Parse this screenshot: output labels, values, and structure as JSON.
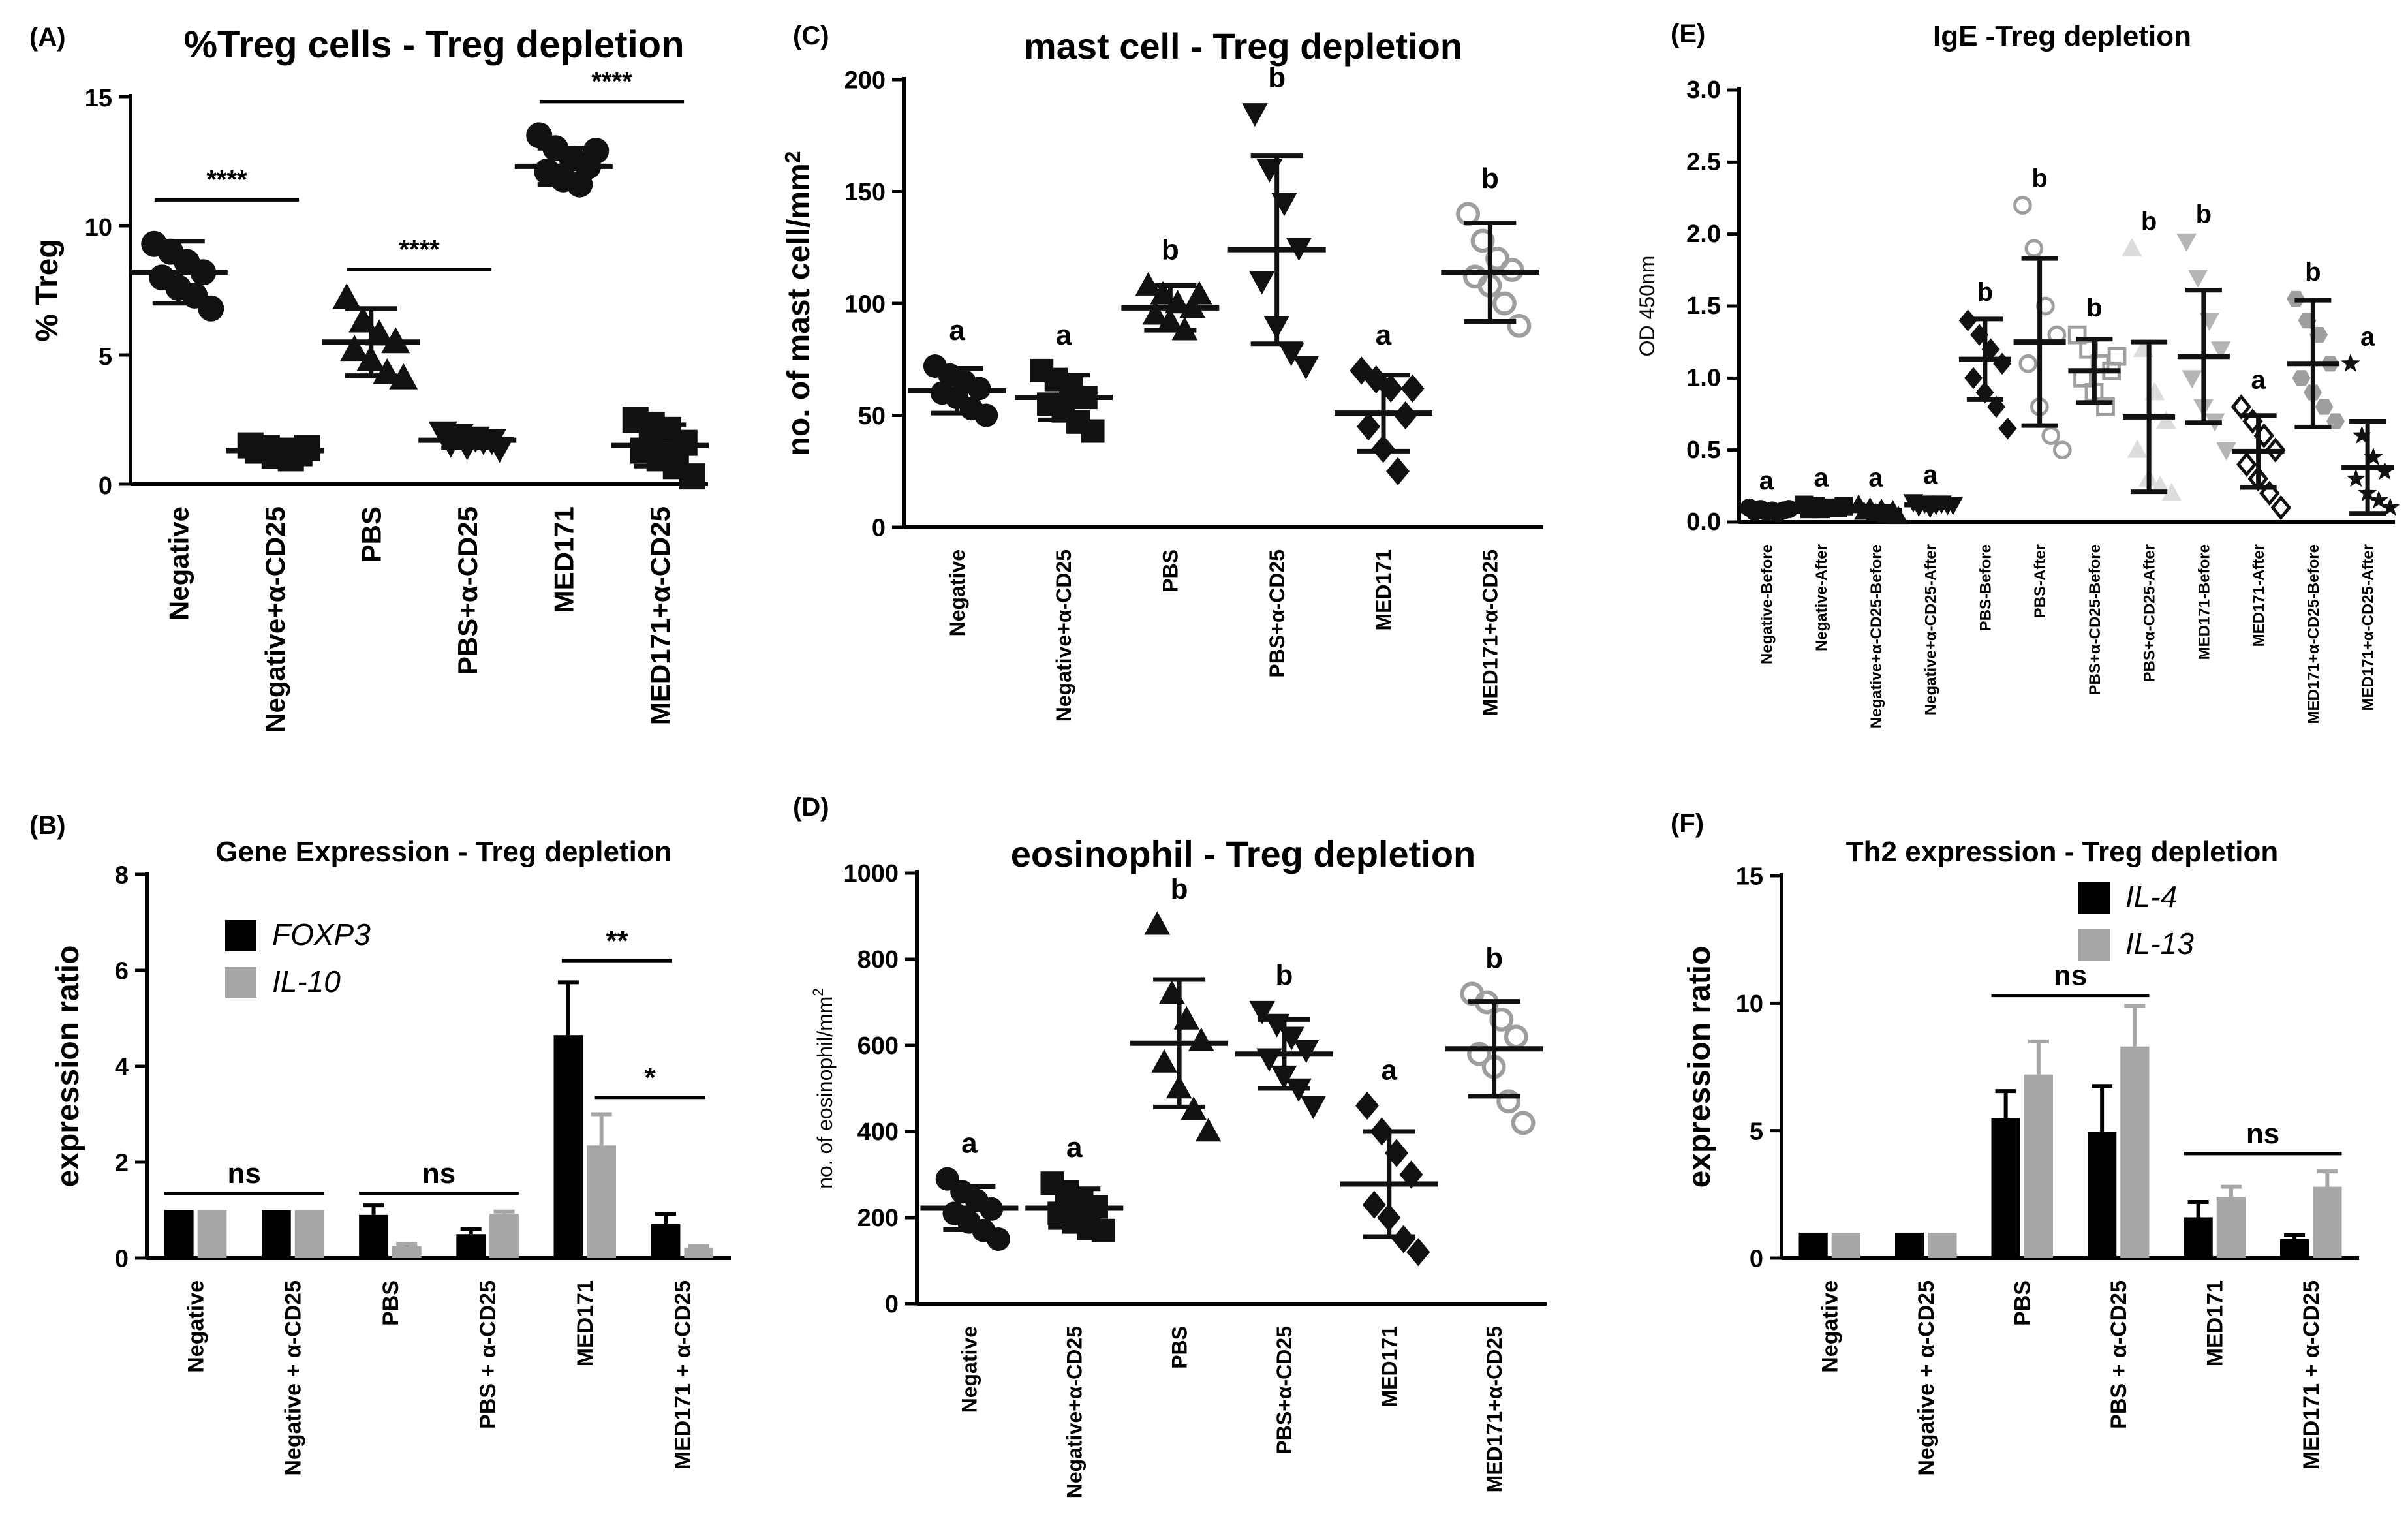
{
  "figure": {
    "description_free": true
  },
  "chart_data": [
    {
      "id": "A",
      "panel_label": "(A)",
      "type": "scatter",
      "title": "%Treg cells - Treg depletion",
      "ylabel": "% Treg",
      "xlabel": "",
      "ylim": [
        0,
        15
      ],
      "yticks": [
        0,
        5,
        10,
        15
      ],
      "categories": [
        "Negative",
        "Negative+α-CD25",
        "PBS",
        "PBS+α-CD25",
        "MED171",
        "MED171+α-CD25"
      ],
      "groups": [
        {
          "marker": "circle",
          "color": "#111111",
          "mean": 8.2,
          "sd": 1.2,
          "points": [
            9.3,
            9.0,
            8.6,
            8.2,
            8.0,
            7.6,
            7.3,
            6.8
          ]
        },
        {
          "marker": "square",
          "color": "#111111",
          "mean": 1.3,
          "sd": 0.3,
          "points": [
            1.5,
            1.4,
            1.3,
            1.2,
            1.3,
            1.1,
            1.0,
            1.4
          ]
        },
        {
          "marker": "triangle-up",
          "color": "#111111",
          "mean": 5.5,
          "sd": 1.3,
          "points": [
            7.2,
            6.3,
            5.8,
            5.5,
            5.2,
            4.8,
            4.3,
            4.1
          ]
        },
        {
          "marker": "triangle-down",
          "color": "#111111",
          "mean": 1.7,
          "sd": 0.3,
          "points": [
            2.0,
            1.9,
            1.8,
            1.7,
            1.6,
            1.5,
            1.7,
            1.4
          ]
        },
        {
          "marker": "circle",
          "color": "#111111",
          "mean": 12.3,
          "sd": 0.7,
          "points": [
            13.5,
            13.0,
            12.6,
            12.3,
            12.1,
            11.8,
            11.6,
            12.9
          ]
        },
        {
          "marker": "square",
          "color": "#111111",
          "mean": 1.5,
          "sd": 0.8,
          "points": [
            2.5,
            2.3,
            2.1,
            1.6,
            1.3,
            1.0,
            0.7,
            0.3
          ]
        }
      ],
      "sig_bars": [
        {
          "from": 0,
          "to": 1,
          "y": 11.0,
          "label": "****"
        },
        {
          "from": 2,
          "to": 3,
          "y": 8.3,
          "label": "****"
        },
        {
          "from": 4,
          "to": 5,
          "y": 14.8,
          "label": "****"
        }
      ],
      "letters": []
    },
    {
      "id": "B",
      "panel_label": "(B)",
      "type": "bar",
      "title": "Gene Expression - Treg depletion",
      "ylabel": "expression ratio",
      "xlabel": "",
      "ylim": [
        0,
        8
      ],
      "yticks": [
        0,
        2,
        4,
        6,
        8
      ],
      "categories": [
        "Negative",
        "Negative + α-CD25",
        "PBS",
        "PBS + α-CD25",
        "MED171",
        "MED171 + α-CD25"
      ],
      "series": [
        {
          "name": "FOXP3",
          "color": "#000000",
          "values": [
            1.0,
            1.0,
            0.9,
            0.5,
            4.65,
            0.72
          ],
          "errors": [
            0.0,
            0.0,
            0.2,
            0.1,
            1.1,
            0.2
          ]
        },
        {
          "name": "IL-10",
          "color": "#a6a6a6",
          "values": [
            1.0,
            1.0,
            0.25,
            0.92,
            2.35,
            0.22
          ],
          "errors": [
            0.0,
            0.0,
            0.05,
            0.05,
            0.65,
            0.03
          ]
        }
      ],
      "legend": "top-left",
      "sig_bars": [
        {
          "from": 0,
          "to": 1,
          "y": 1.35,
          "label": "ns",
          "span": "group"
        },
        {
          "from": 2,
          "to": 3,
          "y": 1.35,
          "label": "ns",
          "span": "group"
        },
        {
          "from": 4,
          "to": 5,
          "y": 6.2,
          "label": "**",
          "span": "bar-foxp3"
        },
        {
          "from": 4,
          "to": 5,
          "y": 3.35,
          "label": "*",
          "span": "bar-il10"
        }
      ]
    },
    {
      "id": "C",
      "panel_label": "(C)",
      "type": "scatter",
      "title": "mast cell - Treg depletion",
      "ylabel": "no. of mast cell/mm",
      "ylabel_sup": "2",
      "xlabel": "",
      "ylim": [
        0,
        200
      ],
      "yticks": [
        0,
        50,
        100,
        150,
        200
      ],
      "categories": [
        "Negative",
        "Negative+α-CD25",
        "PBS",
        "PBS+α-CD25",
        "MED171",
        "MED171+α-CD25"
      ],
      "groups": [
        {
          "marker": "circle",
          "color": "#111111",
          "mean": 61,
          "sd": 10,
          "points": [
            72,
            68,
            65,
            62,
            60,
            58,
            53,
            50
          ]
        },
        {
          "marker": "square",
          "color": "#111111",
          "mean": 58,
          "sd": 10,
          "points": [
            70,
            66,
            62,
            58,
            55,
            52,
            47,
            43
          ]
        },
        {
          "marker": "triangle-up",
          "color": "#111111",
          "mean": 98,
          "sd": 10,
          "points": [
            108,
            104,
            100,
            98,
            95,
            92,
            88,
            104
          ]
        },
        {
          "marker": "triangle-down",
          "color": "#111111",
          "mean": 124,
          "sd": 42,
          "points": [
            185,
            160,
            145,
            125,
            110,
            90,
            78,
            72
          ]
        },
        {
          "marker": "diamond",
          "color": "#111111",
          "mean": 51,
          "sd": 17,
          "points": [
            70,
            66,
            62,
            50,
            45,
            35,
            25,
            62
          ]
        },
        {
          "marker": "circle-open",
          "color": "#9e9e9e",
          "mean": 114,
          "sd": 22,
          "points": [
            140,
            128,
            120,
            115,
            112,
            108,
            100,
            90
          ]
        }
      ],
      "letters": [
        "a",
        "a",
        "b",
        "b",
        "a",
        "b"
      ],
      "sig_bars": []
    },
    {
      "id": "D",
      "panel_label": "(D)",
      "type": "scatter",
      "title": "eosinophil - Treg depletion",
      "ylabel": "no. of eosinophil/mm",
      "ylabel_sup": "2",
      "xlabel": "",
      "ylim": [
        0,
        1000
      ],
      "yticks": [
        0,
        200,
        400,
        600,
        800,
        1000
      ],
      "categories": [
        "Negative",
        "Negative+α-CD25",
        "PBS",
        "PBS+α-CD25",
        "MED171",
        "MED171+α-CD25"
      ],
      "groups": [
        {
          "marker": "circle",
          "color": "#111111",
          "mean": 222,
          "sd": 50,
          "points": [
            290,
            260,
            240,
            220,
            210,
            190,
            170,
            150
          ]
        },
        {
          "marker": "square",
          "color": "#111111",
          "mean": 222,
          "sd": 45,
          "points": [
            280,
            260,
            240,
            225,
            210,
            190,
            175,
            170
          ]
        },
        {
          "marker": "triangle-up",
          "color": "#111111",
          "mean": 605,
          "sd": 148,
          "points": [
            880,
            720,
            660,
            610,
            560,
            500,
            450,
            400
          ]
        },
        {
          "marker": "triangle-down",
          "color": "#111111",
          "mean": 580,
          "sd": 80,
          "points": [
            680,
            650,
            620,
            590,
            570,
            530,
            500,
            460
          ]
        },
        {
          "marker": "diamond",
          "color": "#111111",
          "mean": 278,
          "sd": 122,
          "points": [
            460,
            400,
            350,
            300,
            230,
            200,
            150,
            120
          ]
        },
        {
          "marker": "circle-open",
          "color": "#9e9e9e",
          "mean": 592,
          "sd": 110,
          "points": [
            720,
            700,
            660,
            620,
            580,
            550,
            470,
            420
          ]
        }
      ],
      "letters": [
        "a",
        "a",
        "b",
        "b",
        "a",
        "b"
      ],
      "sig_bars": []
    },
    {
      "id": "E",
      "panel_label": "(E)",
      "type": "scatter",
      "title": "IgE -Treg depletion",
      "ylabel": "OD 450nm",
      "xlabel": "",
      "ylim": [
        0,
        3.0
      ],
      "yticks": [
        0.0,
        0.5,
        1.0,
        1.5,
        2.0,
        2.5,
        3.0
      ],
      "categories": [
        "Negative-Before",
        "Negative-After",
        "Negative+α-CD25-Before",
        "Negative+α-CD25-After",
        "PBS-Before",
        "PBS-After",
        "PBS+α-CD25-Before",
        "PBS+α-CD25-After",
        "MED171-Before",
        "MED171-After",
        "MED171+α-CD25-Before",
        "MED171+α-CD25-After"
      ],
      "groups": [
        {
          "marker": "circle",
          "color": "#111111",
          "mean": 0.08,
          "sd": 0.02,
          "points": [
            0.1,
            0.09,
            0.08,
            0.08,
            0.07,
            0.07,
            0.06,
            0.09
          ]
        },
        {
          "marker": "square",
          "color": "#111111",
          "mean": 0.1,
          "sd": 0.02,
          "points": [
            0.12,
            0.11,
            0.1,
            0.1,
            0.09,
            0.09,
            0.1,
            0.11
          ]
        },
        {
          "marker": "triangle-up",
          "color": "#111111",
          "mean": 0.08,
          "sd": 0.03,
          "points": [
            0.12,
            0.1,
            0.09,
            0.08,
            0.07,
            0.06,
            0.05,
            0.04
          ]
        },
        {
          "marker": "triangle-down",
          "color": "#111111",
          "mean": 0.12,
          "sd": 0.02,
          "points": [
            0.14,
            0.13,
            0.12,
            0.12,
            0.11,
            0.1,
            0.13,
            0.12
          ]
        },
        {
          "marker": "diamond",
          "color": "#111111",
          "mean": 1.13,
          "sd": 0.28,
          "points": [
            1.4,
            1.3,
            1.2,
            1.1,
            1.0,
            0.9,
            0.8,
            0.65
          ]
        },
        {
          "marker": "circle-open",
          "color": "#9e9e9e",
          "mean": 1.25,
          "sd": 0.58,
          "points": [
            2.2,
            1.9,
            1.5,
            1.3,
            1.1,
            0.8,
            0.6,
            0.5
          ]
        },
        {
          "marker": "square-open",
          "color": "#9e9e9e",
          "mean": 1.05,
          "sd": 0.22,
          "points": [
            1.3,
            1.2,
            1.1,
            1.05,
            1.0,
            0.9,
            0.8,
            1.15
          ]
        },
        {
          "marker": "triangle-up-light",
          "color": "#dcdcdc",
          "mean": 0.73,
          "sd": 0.52,
          "points": [
            1.9,
            1.2,
            0.9,
            0.7,
            0.5,
            0.3,
            0.25,
            0.2
          ]
        },
        {
          "marker": "triangle-down-light",
          "color": "#b5b5b5",
          "mean": 1.15,
          "sd": 0.46,
          "points": [
            1.95,
            1.7,
            1.4,
            1.2,
            1.0,
            0.8,
            0.7,
            0.5
          ]
        },
        {
          "marker": "diamond-open",
          "color": "#111111",
          "mean": 0.49,
          "sd": 0.25,
          "points": [
            0.8,
            0.7,
            0.6,
            0.5,
            0.4,
            0.3,
            0.2,
            0.1
          ]
        },
        {
          "marker": "hexagon",
          "color": "#9e9e9e",
          "mean": 1.1,
          "sd": 0.44,
          "points": [
            1.55,
            1.4,
            1.3,
            1.1,
            1.0,
            0.9,
            0.8,
            0.7
          ]
        },
        {
          "marker": "star",
          "color": "#111111",
          "mean": 0.38,
          "sd": 0.32,
          "points": [
            1.1,
            0.6,
            0.45,
            0.35,
            0.3,
            0.2,
            0.15,
            0.1
          ]
        }
      ],
      "letters": [
        "a",
        "a",
        "a",
        "a",
        "b",
        "b",
        "b",
        "b",
        "b",
        "a",
        "b",
        "a"
      ],
      "sig_bars": []
    },
    {
      "id": "F",
      "panel_label": "(F)",
      "type": "bar",
      "title": "Th2 expression - Treg depletion",
      "ylabel": "expression ratio",
      "xlabel": "",
      "ylim": [
        0,
        15
      ],
      "yticks": [
        0,
        5,
        10,
        15
      ],
      "categories": [
        "Negative",
        "Negative + α-CD25",
        "PBS",
        "PBS + α-CD25",
        "MED171",
        "MED171 + α-CD25"
      ],
      "series": [
        {
          "name": "IL-4",
          "color": "#000000",
          "values": [
            1.0,
            1.0,
            5.5,
            4.95,
            1.6,
            0.75
          ],
          "errors": [
            0.0,
            0.0,
            1.05,
            1.8,
            0.6,
            0.15
          ]
        },
        {
          "name": "IL-13",
          "color": "#a6a6a6",
          "values": [
            1.0,
            1.0,
            7.2,
            8.3,
            2.4,
            2.8
          ],
          "errors": [
            0.0,
            0.0,
            1.3,
            1.6,
            0.4,
            0.6
          ]
        }
      ],
      "legend": "top-right",
      "sig_bars": [
        {
          "from": 2,
          "to": 3,
          "y": 10.3,
          "label": "ns",
          "span": "group"
        },
        {
          "from": 4,
          "to": 5,
          "y": 4.1,
          "label": "ns",
          "span": "group"
        }
      ]
    }
  ]
}
